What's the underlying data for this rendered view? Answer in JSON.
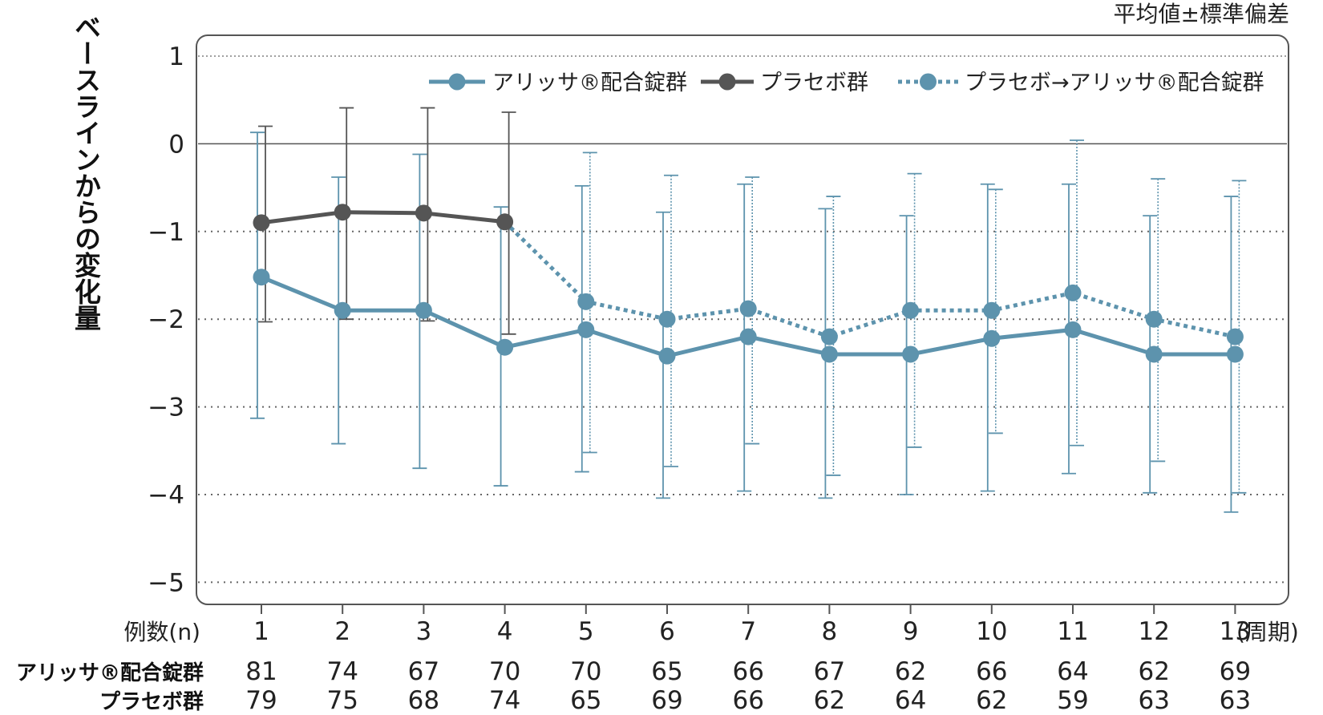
{
  "chart_data": {
    "type": "line",
    "note": "平均値±標準偏差",
    "ylabel": "ベースラインからの変化量",
    "ylim": [
      -5,
      1
    ],
    "yticks": [
      1,
      0,
      -1,
      -2,
      -3,
      -4,
      -5
    ],
    "ytick_labels": [
      "1",
      "0",
      "−1",
      "−2",
      "−3",
      "−4",
      "−5"
    ],
    "x": [
      1,
      2,
      3,
      4,
      5,
      6,
      7,
      8,
      9,
      10,
      11,
      12,
      13
    ],
    "x_unit": "(周期)",
    "legend_position": "top-right",
    "series": [
      {
        "name": "アリッサ®配合錠群",
        "color": "#5d93ad",
        "style": "solid",
        "x": [
          1,
          2,
          3,
          4,
          5,
          6,
          7,
          8,
          9,
          10,
          11,
          12,
          13
        ],
        "y": [
          -1.52,
          -1.9,
          -1.9,
          -2.32,
          -2.12,
          -2.42,
          -2.2,
          -2.4,
          -2.4,
          -2.22,
          -2.12,
          -2.4,
          -2.4
        ],
        "err_low": [
          -3.13,
          -3.42,
          -3.7,
          -3.9,
          -3.74,
          -4.04,
          -3.96,
          -4.04,
          -4.0,
          -3.96,
          -3.76,
          -3.98,
          -4.2
        ],
        "err_high": [
          0.13,
          -0.38,
          -0.12,
          -0.72,
          -0.48,
          -0.78,
          -0.46,
          -0.74,
          -0.82,
          -0.46,
          -0.46,
          -0.82,
          -0.6
        ]
      },
      {
        "name": "プラセボ群",
        "color": "#555555",
        "style": "solid",
        "x": [
          1,
          2,
          3,
          4
        ],
        "y": [
          -0.9,
          -0.78,
          -0.79,
          -0.89
        ],
        "err_low": [
          -2.03,
          -2.0,
          -2.02,
          -2.17
        ],
        "err_high": [
          0.2,
          0.41,
          0.41,
          0.36
        ]
      },
      {
        "name": "プラセボ→アリッサ®配合錠群",
        "color": "#5d93ad",
        "style": "dotted",
        "x": [
          4,
          5,
          6,
          7,
          8,
          9,
          10,
          11,
          12,
          13
        ],
        "y": [
          -0.89,
          -1.8,
          -2.0,
          -1.88,
          -2.2,
          -1.9,
          -1.9,
          -1.7,
          -2.0,
          -2.2
        ],
        "err_low": [
          null,
          -3.52,
          -3.68,
          -3.42,
          -3.78,
          -3.46,
          -3.3,
          -3.44,
          -3.62,
          -3.98
        ],
        "err_high": [
          null,
          -0.1,
          -0.36,
          -0.38,
          -0.6,
          -0.34,
          -0.52,
          0.04,
          -0.4,
          -0.42
        ]
      }
    ],
    "table": {
      "header": "例数(n)",
      "rows": [
        {
          "label": "アリッサ®配合錠群",
          "values": [
            81,
            74,
            67,
            70,
            70,
            65,
            66,
            67,
            62,
            66,
            64,
            62,
            69
          ]
        },
        {
          "label": "プラセボ群",
          "values": [
            79,
            75,
            68,
            74,
            65,
            69,
            66,
            62,
            64,
            62,
            59,
            63,
            63
          ]
        }
      ]
    }
  }
}
